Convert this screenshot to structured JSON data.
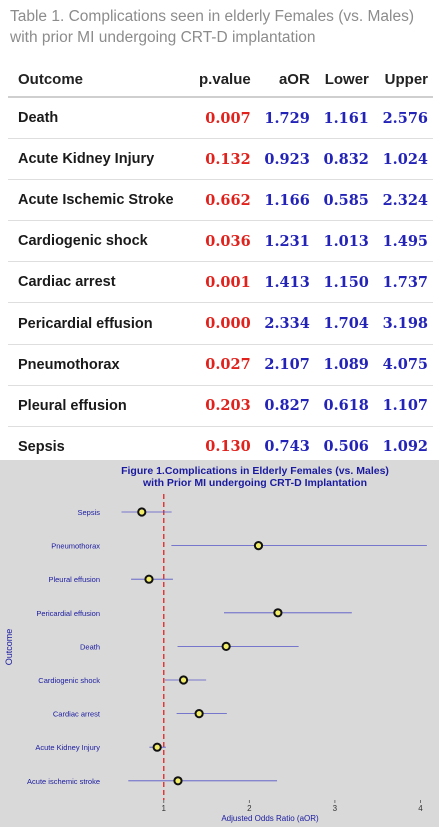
{
  "table": {
    "caption": "Table 1. Complications seen in elderly Females (vs. Males) with prior MI undergoing CRT-D implantation",
    "headers": [
      "Outcome",
      "p.value",
      "aOR",
      "Lower",
      "Upper"
    ],
    "rows": [
      [
        "Death",
        "0.007",
        "1.729",
        "1.161",
        "2.576"
      ],
      [
        "Acute Kidney Injury",
        "0.132",
        "0.923",
        "0.832",
        "1.024"
      ],
      [
        "Acute Ischemic Stroke",
        "0.662",
        "1.166",
        "0.585",
        "2.324"
      ],
      [
        "Cardiogenic shock",
        "0.036",
        "1.231",
        "1.013",
        "1.495"
      ],
      [
        "Cardiac arrest",
        "0.001",
        "1.413",
        "1.150",
        "1.737"
      ],
      [
        "Pericardial effusion",
        "0.000",
        "2.334",
        "1.704",
        "3.198"
      ],
      [
        "Pneumothorax",
        "0.027",
        "2.107",
        "1.089",
        "4.075"
      ],
      [
        "Pleural effusion",
        "0.203",
        "0.827",
        "0.618",
        "1.107"
      ],
      [
        "Sepsis",
        "0.130",
        "0.743",
        "0.506",
        "1.092"
      ]
    ],
    "colors": {
      "pvalue": "#e0211c",
      "stats": "#2323b8",
      "text": "#1a1a1a",
      "caption": "#8c8c8c"
    }
  },
  "chart_data": {
    "type": "scatter",
    "title": "Figure 1.Complications in Elderly Females (vs. Males) with Prior MI undergoing CRT-D Implantation",
    "title_lines": [
      "Figure 1.Complications in Elderly Females (vs. Males)",
      "with Prior MI undergoing CRT-D Implantation"
    ],
    "xlabel": "Adjusted Odds Ratio (aOR)",
    "ylabel": "Outcome",
    "xlim": [
      0.5,
      4.1
    ],
    "xticks": [
      1,
      2,
      3,
      4
    ],
    "reference_line": 1,
    "grid": false,
    "categories": [
      "Sepsis",
      "Pneumothorax",
      "Pleural effusion",
      "Pericardial effusion",
      "Death",
      "Cardiogenic shock",
      "Cardiac arrest",
      "Acute Kidney Injury",
      "Acute ischemic stroke"
    ],
    "aor": [
      0.743,
      2.107,
      0.827,
      2.334,
      1.729,
      1.231,
      1.413,
      0.923,
      1.166
    ],
    "lower": [
      0.506,
      1.089,
      0.618,
      1.704,
      1.161,
      1.013,
      1.15,
      0.832,
      0.585
    ],
    "upper": [
      1.092,
      4.075,
      1.107,
      3.198,
      2.576,
      1.495,
      1.737,
      1.024,
      2.324
    ],
    "colors": {
      "background": "#d9d9d9",
      "text": "#1a1aa0",
      "ci_line": "#5555c8",
      "point_fill": "#f2ee6a",
      "point_stroke": "#111111",
      "reference": "#e02020"
    }
  }
}
